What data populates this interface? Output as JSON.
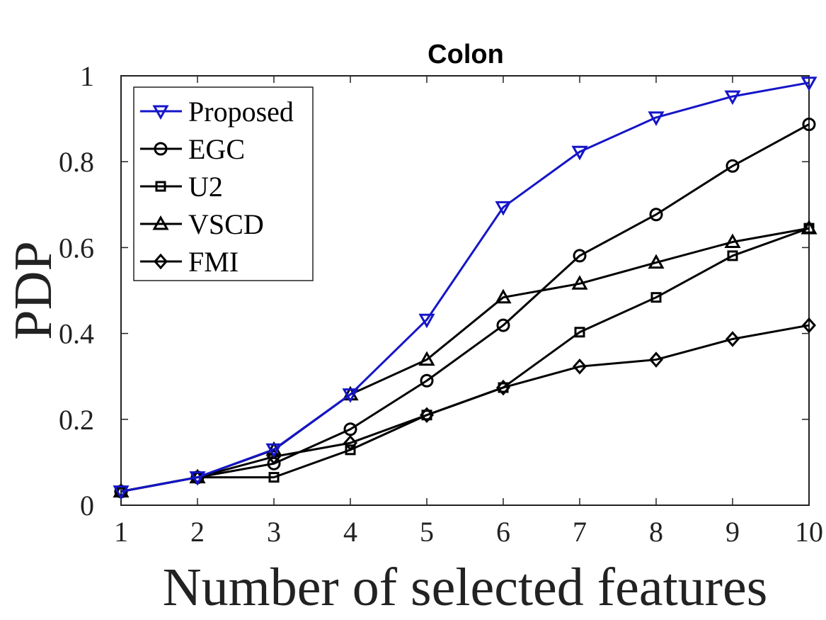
{
  "chart_data": {
    "type": "line",
    "title": "Colon",
    "xlabel": "Number of selected features",
    "ylabel": "PDP",
    "xlim": [
      1,
      10
    ],
    "ylim": [
      0,
      1
    ],
    "x": [
      1,
      2,
      3,
      4,
      5,
      6,
      7,
      8,
      9,
      10
    ],
    "x_ticks": [
      "1",
      "2",
      "3",
      "4",
      "5",
      "6",
      "7",
      "8",
      "9",
      "10"
    ],
    "y_ticks": [
      "0",
      "0.2",
      "0.4",
      "0.6",
      "0.8",
      "1"
    ],
    "y_tick_values": [
      0,
      0.2,
      0.4,
      0.6,
      0.8,
      1
    ],
    "grid": false,
    "legend_position": "top-left",
    "series": [
      {
        "name": "Proposed",
        "marker": "triangle-down",
        "color": "#1515c8",
        "values": [
          0.032,
          0.065,
          0.13,
          0.258,
          0.432,
          0.694,
          0.823,
          0.903,
          0.952,
          0.984
        ]
      },
      {
        "name": "EGC",
        "marker": "circle",
        "color": "#000000",
        "values": [
          0.032,
          0.065,
          0.097,
          0.177,
          0.29,
          0.419,
          0.581,
          0.677,
          0.79,
          0.887
        ]
      },
      {
        "name": "U2",
        "marker": "square",
        "color": "#000000",
        "values": [
          0.032,
          0.065,
          0.065,
          0.129,
          0.21,
          0.274,
          0.403,
          0.484,
          0.581,
          0.645
        ]
      },
      {
        "name": "VSCD",
        "marker": "triangle-up",
        "color": "#000000",
        "values": [
          0.032,
          0.065,
          0.129,
          0.258,
          0.339,
          0.484,
          0.516,
          0.565,
          0.613,
          0.645
        ]
      },
      {
        "name": "FMI",
        "marker": "diamond",
        "color": "#000000",
        "values": [
          0.032,
          0.065,
          0.113,
          0.145,
          0.21,
          0.274,
          0.323,
          0.339,
          0.387,
          0.419
        ]
      }
    ]
  }
}
